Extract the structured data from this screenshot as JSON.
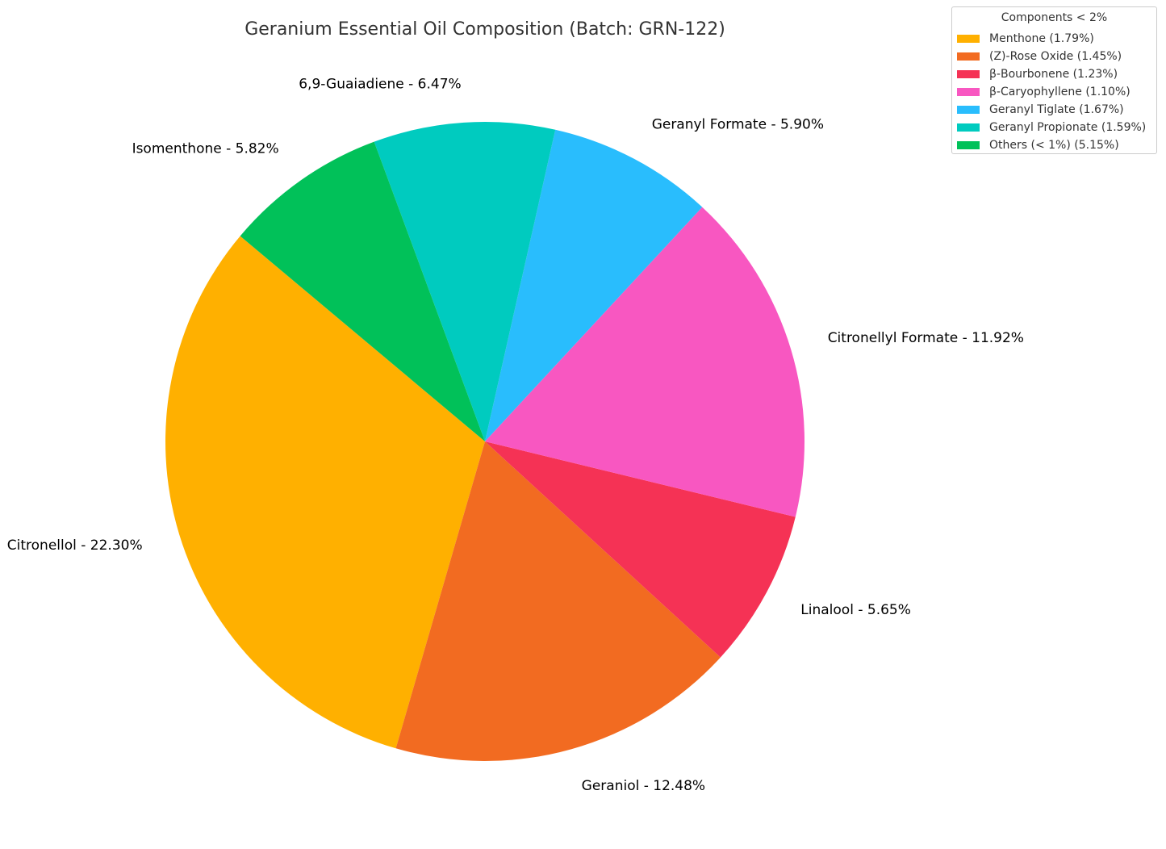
{
  "chart_data": {
    "type": "pie",
    "title": "Geranium Essential Oil Composition (Batch: GRN-122)",
    "slices": [
      {
        "label": "Citronellol - 22.30%",
        "name": "Citronellol",
        "value": 22.3,
        "color": "#FFB000"
      },
      {
        "label": "Geraniol - 12.48%",
        "name": "Geraniol",
        "value": 12.48,
        "color": "#F26B21"
      },
      {
        "label": "Linalool - 5.65%",
        "name": "Linalool",
        "value": 5.65,
        "color": "#F53255"
      },
      {
        "label": "Citronellyl Formate - 11.92%",
        "name": "Citronellyl Formate",
        "value": 11.92,
        "color": "#F857C1"
      },
      {
        "label": "Geranyl Formate - 5.90%",
        "name": "Geranyl Formate",
        "value": 5.9,
        "color": "#29BDFD"
      },
      {
        "label": "6,9-Guaiadiene - 6.47%",
        "name": "6,9-Guaiadiene",
        "value": 6.47,
        "color": "#00CBBF"
      },
      {
        "label": "Isomenthone - 5.82%",
        "name": "Isomenthone",
        "value": 5.82,
        "color": "#01C159"
      }
    ],
    "legend": {
      "title": "Components < 2%",
      "position": "top-right",
      "items": [
        {
          "label": "Menthone (1.79%)",
          "color": "#FFB000"
        },
        {
          "label": "(Z)-Rose Oxide (1.45%)",
          "color": "#F26B21"
        },
        {
          "label": "β-Bourbonene (1.23%)",
          "color": "#F53255"
        },
        {
          "label": "β-Caryophyllene (1.10%)",
          "color": "#F857C1"
        },
        {
          "label": "Geranyl Tiglate (1.67%)",
          "color": "#29BDFD"
        },
        {
          "label": "Geranyl Propionate (1.59%)",
          "color": "#00CBBF"
        },
        {
          "label": "Others (< 1%) (5.15%)",
          "color": "#01C159"
        }
      ]
    }
  }
}
